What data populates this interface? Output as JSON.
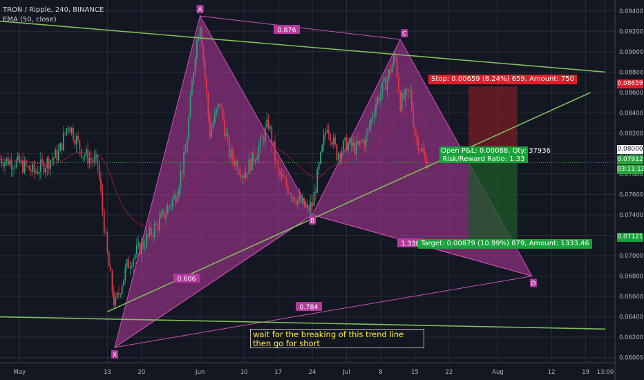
{
  "header": {
    "title": "TRON / Ripple, 240, BINANCE",
    "indicator": "EMA (50, close)"
  },
  "note": "wait for the breaking of this trend line then go for short",
  "colors": {
    "background": "#131722",
    "pattern_fill": "#b5399d",
    "pattern_stroke": "#d152b5",
    "trend_line": "#7fbf5a",
    "candle_up": "#2ea27a",
    "candle_down": "#e0394a",
    "stop_zone": "#7a1e26",
    "target_zone": "#1e5a2a",
    "price_line": "#4caf50"
  },
  "position_labels": {
    "stop": "Stop: 0.00659 (8.24%) 659, Amount: 750",
    "pnl": "Open P&L: 0.00088, Qty: 37936",
    "rr": "Risk/Reward Ratio: 1.33",
    "target": "Target: 0.00879 (10.99%) 879, Amount: 1333.46"
  },
  "axis_tags": {
    "stop_price": "0.08659",
    "entry_price": "0.08000",
    "current_price": "0.07912",
    "countdown": "03:11:12",
    "target_price": "0.07121"
  },
  "chart_data": {
    "type": "candlestick",
    "symbol": "TRON / Ripple",
    "interval": "240",
    "exchange": "BINANCE",
    "ylim": [
      0.0595,
      0.095
    ],
    "y_ticks": [
      "0.09400",
      "0.09200",
      "0.09000",
      "0.08800",
      "0.08600",
      "0.08400",
      "0.08200",
      "0.08000",
      "0.07800",
      "0.07600",
      "0.07400",
      "0.07200",
      "0.07000",
      "0.06800",
      "0.06600",
      "0.06400",
      "0.06200",
      "0.06000"
    ],
    "x_ticks": [
      {
        "label": "May",
        "day": -5
      },
      {
        "label": "13",
        "day": 13
      },
      {
        "label": "20",
        "day": 20
      },
      {
        "label": "Jun",
        "day": 32
      },
      {
        "label": "10",
        "day": 41
      },
      {
        "label": "17",
        "day": 48
      },
      {
        "label": "24",
        "day": 55
      },
      {
        "label": "Jul",
        "day": 62
      },
      {
        "label": "8",
        "day": 69
      },
      {
        "label": "15",
        "day": 76
      },
      {
        "label": "22",
        "day": 83
      },
      {
        "label": "Aug",
        "day": 93
      },
      {
        "label": "12",
        "day": 104
      },
      {
        "label": "19",
        "day": 111
      },
      {
        "label": "13:00",
        "day": 115
      }
    ],
    "price_path": [
      {
        "day": -9,
        "price": 0.0795
      },
      {
        "day": -5,
        "price": 0.079
      },
      {
        "day": -2,
        "price": 0.0782
      },
      {
        "day": 3,
        "price": 0.08
      },
      {
        "day": 5,
        "price": 0.083
      },
      {
        "day": 8,
        "price": 0.08
      },
      {
        "day": 11,
        "price": 0.079
      },
      {
        "day": 13,
        "price": 0.07
      },
      {
        "day": 14.5,
        "price": 0.065
      },
      {
        "day": 17,
        "price": 0.069
      },
      {
        "day": 20,
        "price": 0.071
      },
      {
        "day": 24,
        "price": 0.0735
      },
      {
        "day": 27,
        "price": 0.076
      },
      {
        "day": 29,
        "price": 0.08
      },
      {
        "day": 31,
        "price": 0.09
      },
      {
        "day": 32,
        "price": 0.093
      },
      {
        "day": 34,
        "price": 0.082
      },
      {
        "day": 36,
        "price": 0.085
      },
      {
        "day": 38,
        "price": 0.08
      },
      {
        "day": 41,
        "price": 0.078
      },
      {
        "day": 44,
        "price": 0.0805
      },
      {
        "day": 46,
        "price": 0.083
      },
      {
        "day": 48,
        "price": 0.078
      },
      {
        "day": 51,
        "price": 0.076
      },
      {
        "day": 54,
        "price": 0.0745
      },
      {
        "day": 55,
        "price": 0.075
      },
      {
        "day": 58,
        "price": 0.083
      },
      {
        "day": 60,
        "price": 0.08
      },
      {
        "day": 62,
        "price": 0.081
      },
      {
        "day": 64,
        "price": 0.0805
      },
      {
        "day": 66,
        "price": 0.0815
      },
      {
        "day": 68,
        "price": 0.085
      },
      {
        "day": 70,
        "price": 0.087
      },
      {
        "day": 72,
        "price": 0.0895
      },
      {
        "day": 73,
        "price": 0.085
      },
      {
        "day": 75,
        "price": 0.086
      },
      {
        "day": 76,
        "price": 0.082
      },
      {
        "day": 78,
        "price": 0.0795
      },
      {
        "day": 79,
        "price": 0.0791
      }
    ],
    "harmonic_pattern": {
      "points": [
        {
          "label": "X",
          "day": 14.5,
          "price": 0.061
        },
        {
          "label": "A",
          "day": 32,
          "price": 0.0935
        },
        {
          "label": "B",
          "day": 55,
          "price": 0.074
        },
        {
          "label": "C",
          "day": 73,
          "price": 0.0912
        },
        {
          "label": "D",
          "day": 100,
          "price": 0.068
        }
      ],
      "ratios": [
        {
          "label": "0.876",
          "between": "A-C"
        },
        {
          "label": "0.606",
          "between": "X-B"
        },
        {
          "label": "1.338",
          "between": "B-D"
        },
        {
          "label": "0.784",
          "between": "X-D"
        }
      ]
    },
    "trend_lines": [
      {
        "name": "upper",
        "from": {
          "day": -9,
          "price": 0.093
        },
        "to": {
          "day": 115,
          "price": 0.088
        }
      },
      {
        "name": "rising",
        "from": {
          "day": 13,
          "price": 0.0645
        },
        "to": {
          "day": 112,
          "price": 0.086
        }
      },
      {
        "name": "lower",
        "from": {
          "day": -9,
          "price": 0.064
        },
        "to": {
          "day": 115,
          "price": 0.0628
        }
      }
    ],
    "position": {
      "entry": 0.08,
      "stop": 0.08659,
      "target": 0.07121,
      "current": 0.07912,
      "start_day": 87,
      "end_day": 97
    }
  }
}
